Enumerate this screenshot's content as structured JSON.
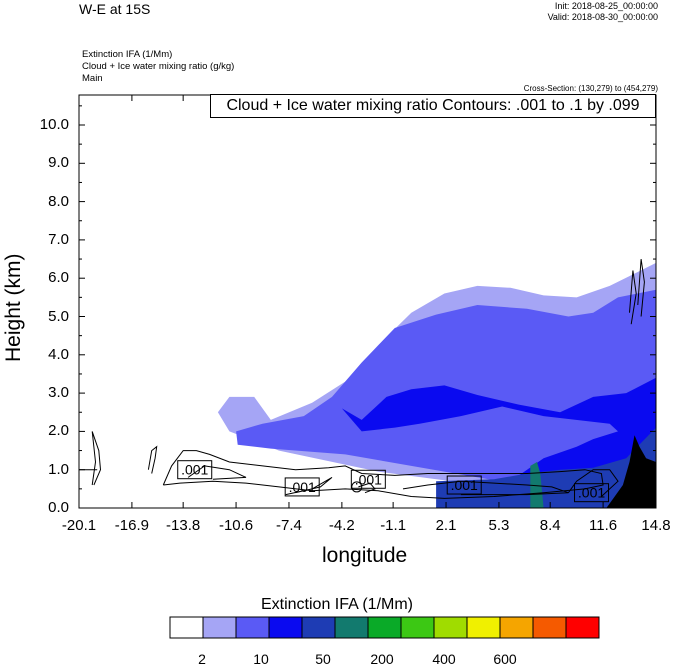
{
  "header": {
    "title": "W-E at 15S",
    "init": "Init: 2018-08-25_00:00:00",
    "valid": "Valid: 2018-08-30_00:00:00"
  },
  "meta": {
    "line1": "Extinction IFA   (1/Mm)",
    "line2": "Cloud + Ice water mixing ratio   (g/kg)",
    "line3": "Main",
    "cross_section": "Cross-Section: (130,279) to (454,279)"
  },
  "contour_title": "Cloud + Ice water mixing ratio Contours: .001 to .1 by .099",
  "contour_labels": [
    ".001",
    ".001",
    ".001",
    ".001",
    ".001"
  ],
  "chart_data": {
    "type": "heatmap",
    "xlabel": "longitude",
    "ylabel": "Height (km)",
    "x_ticks": [
      "-20.1",
      "-16.9",
      "-13.8",
      "-10.6",
      "-7.4",
      "-4.2",
      "-1.1",
      "2.1",
      "5.3",
      "8.4",
      "11.6",
      "14.8"
    ],
    "y_ticks": [
      "0.0",
      "1.0",
      "2.0",
      "3.0",
      "4.0",
      "5.0",
      "6.0",
      "7.0",
      "8.0",
      "9.0",
      "10.0"
    ],
    "xlim": [
      -20.1,
      14.8
    ],
    "ylim": [
      0,
      10.8
    ],
    "colorbar": {
      "title": "Extinction IFA  (1/Mm)",
      "labels": [
        "2",
        "10",
        "50",
        "200",
        "400",
        "600"
      ],
      "colors": [
        "#ffffff",
        "#a5a5f5",
        "#5a5af5",
        "#0a0af0",
        "#1e3cb4",
        "#127a6e",
        "#0aaa28",
        "#3cc814",
        "#a0dc00",
        "#f0f000",
        "#f5a500",
        "#f55a00",
        "#ff0000"
      ]
    },
    "regions": [
      {
        "level": "2-10",
        "color": "#a5a5f5",
        "outline": [
          [
            -8.5,
            2.3
          ],
          [
            -6,
            2.75
          ],
          [
            -4,
            3.3
          ],
          [
            -2,
            4.25
          ],
          [
            0,
            5.1
          ],
          [
            2,
            5.6
          ],
          [
            4,
            5.8
          ],
          [
            6,
            5.75
          ],
          [
            8,
            5.55
          ],
          [
            10,
            5.5
          ],
          [
            12,
            5.8
          ],
          [
            14.8,
            6.4
          ],
          [
            14.8,
            0
          ],
          [
            -2,
            0.95
          ],
          [
            -8,
            1.5
          ],
          [
            -11,
            2.0
          ],
          [
            -11.7,
            2.5
          ],
          [
            -11,
            2.9
          ],
          [
            -9.5,
            2.9
          ]
        ]
      },
      {
        "level": "10-50",
        "color": "#5a5af5",
        "outline": [
          [
            -10.6,
            2.0
          ],
          [
            -9,
            2.2
          ],
          [
            -6.5,
            2.4
          ],
          [
            -4.8,
            2.9
          ],
          [
            -3,
            3.8
          ],
          [
            -1,
            4.7
          ],
          [
            1.5,
            5.05
          ],
          [
            4,
            5.3
          ],
          [
            7,
            5.2
          ],
          [
            9.5,
            5.0
          ],
          [
            11,
            5.1
          ],
          [
            12.5,
            5.5
          ],
          [
            14.8,
            5.7
          ],
          [
            14.8,
            0
          ],
          [
            2,
            0.95
          ],
          [
            -4,
            1.4
          ],
          [
            -8.5,
            1.55
          ],
          [
            -10.5,
            1.65
          ]
        ]
      },
      {
        "level": "50-200",
        "color": "#0a0af0",
        "outline": [
          [
            -4.2,
            2.6
          ],
          [
            -3,
            2.3
          ],
          [
            -1.5,
            2.9
          ],
          [
            0,
            3.1
          ],
          [
            2,
            3.2
          ],
          [
            4,
            2.95
          ],
          [
            6.5,
            2.7
          ],
          [
            9,
            2.5
          ],
          [
            11,
            2.9
          ],
          [
            13,
            3.0
          ],
          [
            14.8,
            3.4
          ],
          [
            14.8,
            0
          ],
          [
            6,
            0.7
          ],
          [
            8,
            1.3
          ],
          [
            10,
            1.6
          ],
          [
            11,
            1.8
          ],
          [
            12.5,
            2.0
          ],
          [
            12,
            2.2
          ],
          [
            8,
            2.4
          ],
          [
            5.5,
            2.65
          ],
          [
            3,
            2.4
          ],
          [
            0.5,
            2.2
          ],
          [
            -1,
            2.1
          ],
          [
            -3,
            2.0
          ]
        ]
      },
      {
        "level": "200-400",
        "color": "#1e3cb4",
        "outline": [
          [
            1.5,
            0.7
          ],
          [
            5,
            0.75
          ],
          [
            7,
            0.9
          ],
          [
            9,
            1.0
          ],
          [
            11,
            1.05
          ],
          [
            13,
            1.3
          ],
          [
            14.8,
            2.1
          ],
          [
            14.8,
            0
          ],
          [
            1.5,
            0
          ]
        ]
      },
      {
        "level": "400-600",
        "color": "#127a6e",
        "outline": [
          [
            7.2,
            0
          ],
          [
            7.2,
            1.1
          ],
          [
            7.6,
            1.2
          ],
          [
            7.8,
            0.9
          ],
          [
            8.0,
            0
          ]
        ]
      },
      {
        "level": "terrain",
        "color": "#000000",
        "outline": [
          [
            11.8,
            0
          ],
          [
            12.3,
            0.3
          ],
          [
            12.8,
            0.6
          ],
          [
            13.2,
            1.2
          ],
          [
            13.5,
            1.9
          ],
          [
            13.8,
            1.6
          ],
          [
            14.2,
            1.3
          ],
          [
            14.8,
            1.2
          ],
          [
            14.8,
            0
          ]
        ]
      }
    ],
    "contours": [
      [
        [
          -20.1,
          1.0
        ],
        [
          -19,
          1.0
        ]
      ],
      [
        [
          -19.2,
          0.6
        ],
        [
          -18.8,
          1.0
        ],
        [
          -18.9,
          1.5
        ],
        [
          -19.3,
          2.0
        ],
        [
          -19.1,
          1.2
        ],
        [
          -19.3,
          0.6
        ]
      ],
      [
        [
          -15.7,
          0.9
        ],
        [
          -15.5,
          1.3
        ],
        [
          -15.4,
          1.6
        ],
        [
          -15.7,
          1.5
        ],
        [
          -15.9,
          1.0
        ]
      ],
      [
        [
          -15.0,
          0.6
        ],
        [
          -14.5,
          1.1
        ],
        [
          -13.8,
          1.5
        ],
        [
          -13.0,
          1.5
        ],
        [
          -12.2,
          1.4
        ],
        [
          -11.0,
          1.2
        ],
        [
          -9,
          1.1
        ],
        [
          -7,
          1.0
        ],
        [
          -5,
          1.05
        ],
        [
          -4,
          1.1
        ],
        [
          -3,
          0.9
        ],
        [
          -1,
          0.85
        ],
        [
          1,
          0.9
        ],
        [
          4,
          0.9
        ],
        [
          7,
          0.9
        ],
        [
          9,
          0.95
        ],
        [
          10.5,
          1.0
        ],
        [
          11.5,
          0.9
        ],
        [
          11.6,
          0.6
        ],
        [
          10.5,
          0.5
        ],
        [
          8,
          0.4
        ],
        [
          5,
          0.3
        ],
        [
          2,
          0.25
        ],
        [
          0,
          0.3
        ],
        [
          -2,
          0.45
        ],
        [
          -4,
          0.5
        ],
        [
          -6,
          0.45
        ],
        [
          -8,
          0.55
        ],
        [
          -10,
          0.65
        ],
        [
          -12,
          0.7
        ],
        [
          -14,
          0.65
        ],
        [
          -15,
          0.6
        ]
      ],
      [
        [
          -13.5,
          0.8
        ],
        [
          -12.5,
          1.1
        ],
        [
          -11,
          1.0
        ],
        [
          -10,
          0.8
        ],
        [
          -12,
          0.75
        ]
      ],
      [
        [
          -7.6,
          0.35
        ],
        [
          -6,
          0.5
        ],
        [
          -4.8,
          0.8
        ],
        [
          -5.5,
          0.55
        ],
        [
          -7,
          0.4
        ]
      ],
      [
        [
          -3.2,
          0.55
        ],
        [
          -2.5,
          0.65
        ],
        [
          -2.2,
          0.5
        ],
        [
          -2.8,
          0.4
        ]
      ],
      [
        [
          -0.5,
          0.5
        ],
        [
          1,
          0.6
        ],
        [
          3,
          0.7
        ],
        [
          5,
          0.65
        ],
        [
          7,
          0.6
        ],
        [
          8.5,
          0.55
        ],
        [
          9.5,
          0.4
        ],
        [
          7,
          0.35
        ],
        [
          3,
          0.35
        ]
      ],
      [
        [
          9.5,
          0.4
        ],
        [
          10,
          0.7
        ],
        [
          11,
          1.0
        ],
        [
          12,
          1.0
        ],
        [
          12.5,
          0.7
        ],
        [
          11.5,
          0.3
        ]
      ],
      [
        [
          13.2,
          5.1
        ],
        [
          13.4,
          6.2
        ],
        [
          13.6,
          5.6
        ],
        [
          13.3,
          4.8
        ]
      ],
      [
        [
          13.7,
          5.3
        ],
        [
          13.9,
          6.5
        ],
        [
          14.1,
          5.9
        ],
        [
          13.9,
          5.0
        ]
      ]
    ]
  }
}
